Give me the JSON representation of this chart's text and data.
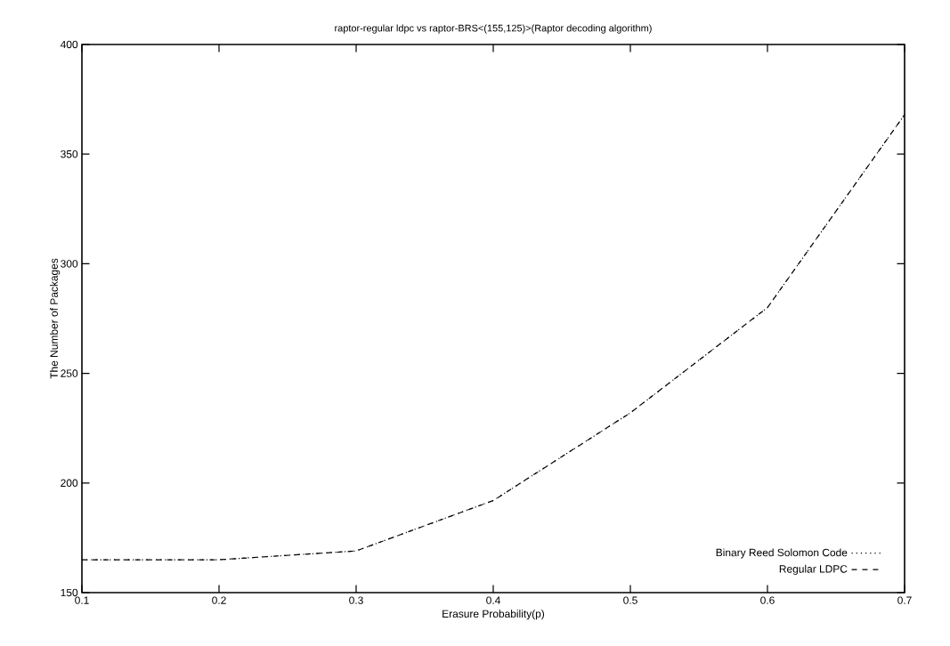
{
  "chart_data": {
    "type": "line",
    "title": "raptor-regular ldpc vs raptor-BRS<(155,125)>(Raptor decoding algorithm)",
    "xlabel": "Erasure Probability(p)",
    "ylabel": "The Number of Packages",
    "x": [
      0.1,
      0.2,
      0.3,
      0.4,
      0.5,
      0.6,
      0.7
    ],
    "series": [
      {
        "name": "Binary Reed Solomon Code",
        "color": "#000000",
        "line_style": "dotted",
        "values": [
          165,
          165,
          169,
          192,
          232,
          280,
          368
        ]
      },
      {
        "name": "Regular LDPC",
        "color": "#000000",
        "line_style": "dashed",
        "values": [
          165,
          165,
          169,
          192,
          232,
          280,
          368
        ]
      }
    ],
    "xlim": [
      0.1,
      0.7
    ],
    "xticks": [
      0.1,
      0.2,
      0.3,
      0.4,
      0.5,
      0.6,
      0.7
    ],
    "ylim": [
      150,
      400
    ],
    "yticks": [
      150,
      200,
      250,
      300,
      350,
      400
    ],
    "legend": "bottom right",
    "grid": false
  }
}
